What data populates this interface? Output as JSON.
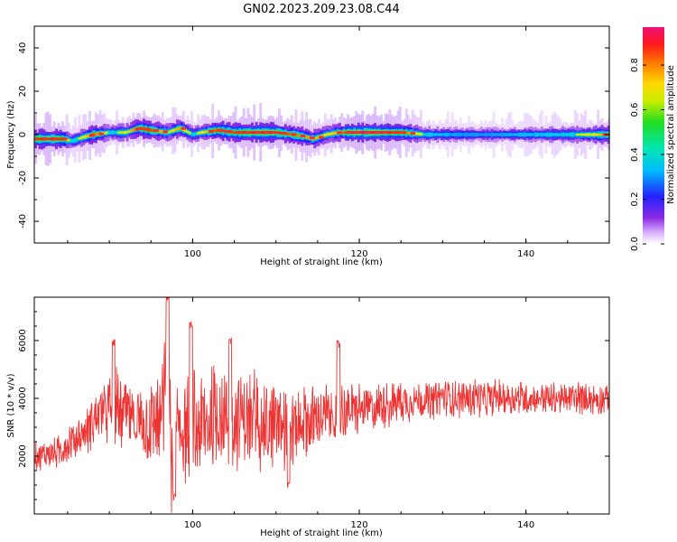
{
  "figure": {
    "title": "GN02.2023.209.23.08.C44"
  },
  "chart_data": [
    {
      "type": "heatmap",
      "xlabel": "Height of straight line (km)",
      "ylabel": "Frequency (Hz)",
      "xlim": [
        81,
        150
      ],
      "ylim": [
        -50,
        50
      ],
      "x_ticks": [
        100,
        120,
        140
      ],
      "y_ticks": [
        40,
        20,
        0,
        -20,
        -40
      ],
      "colorbar": {
        "label": "Normalized spectral amplitude",
        "range": [
          0.0,
          0.97
        ],
        "ticks": [
          0.0,
          0.2,
          0.4,
          0.6,
          0.8
        ],
        "colormap": "rainbow (white-violet-blue-cyan-green-yellow-orange-red-pink)"
      },
      "ridge": {
        "x": [
          81,
          83,
          84.5,
          85.5,
          87,
          88,
          90,
          92,
          93.5,
          95,
          97,
          98.5,
          100,
          101,
          103,
          105,
          108,
          110,
          112,
          113.5,
          114.5,
          116,
          117.5,
          119,
          122,
          125,
          128,
          132,
          136,
          140,
          144,
          148,
          150
        ],
        "freq": [
          -2,
          -2,
          -2,
          -3,
          -1,
          0,
          1,
          1,
          3,
          2,
          1,
          3,
          0,
          1,
          2,
          1,
          1,
          1,
          0,
          -1,
          -2,
          0,
          1,
          1,
          1,
          1,
          0,
          0,
          0,
          0,
          0,
          0,
          0
        ],
        "amp": [
          0.9,
          0.95,
          0.9,
          0.6,
          0.7,
          0.9,
          0.6,
          0.7,
          0.9,
          0.9,
          0.7,
          0.8,
          0.6,
          0.7,
          0.9,
          0.9,
          0.95,
          0.95,
          0.85,
          0.8,
          0.8,
          0.7,
          0.8,
          0.97,
          0.97,
          0.9,
          0.6,
          0.5,
          0.5,
          0.55,
          0.6,
          0.7,
          0.85
        ]
      }
    },
    {
      "type": "line",
      "xlabel": "Height of straight line (km)",
      "ylabel": "SNR (10 * v/v)",
      "xlim": [
        81,
        150
      ],
      "ylim": [
        0,
        7500
      ],
      "x_ticks": [
        100,
        120,
        140
      ],
      "y_ticks": [
        2000,
        4000,
        6000
      ],
      "color": "#ee3333",
      "envelope": {
        "x": [
          81,
          84,
          87,
          89,
          91,
          93,
          95,
          96.5,
          97,
          97.5,
          98.5,
          100,
          103,
          106,
          109,
          112,
          116,
          120,
          125,
          130,
          140,
          150
        ],
        "mean": [
          2000,
          2200,
          2800,
          3600,
          3600,
          3300,
          3000,
          3600,
          4800,
          1800,
          3000,
          2800,
          3400,
          3300,
          3000,
          3100,
          3400,
          3600,
          3900,
          4000,
          4000,
          4000
        ],
        "amp": [
          400,
          500,
          700,
          900,
          1100,
          1000,
          1200,
          1800,
          2300,
          1400,
          1500,
          1700,
          1500,
          1400,
          1300,
          1200,
          900,
          700,
          600,
          550,
          500,
          450
        ]
      },
      "peaks": [
        {
          "x": 90.5,
          "y": 5900
        },
        {
          "x": 97.0,
          "y": 7500
        },
        {
          "x": 97.8,
          "y": 600
        },
        {
          "x": 99.8,
          "y": 6500
        },
        {
          "x": 104.5,
          "y": 6000
        },
        {
          "x": 111.5,
          "y": 1000
        },
        {
          "x": 117.5,
          "y": 5900
        }
      ]
    }
  ]
}
